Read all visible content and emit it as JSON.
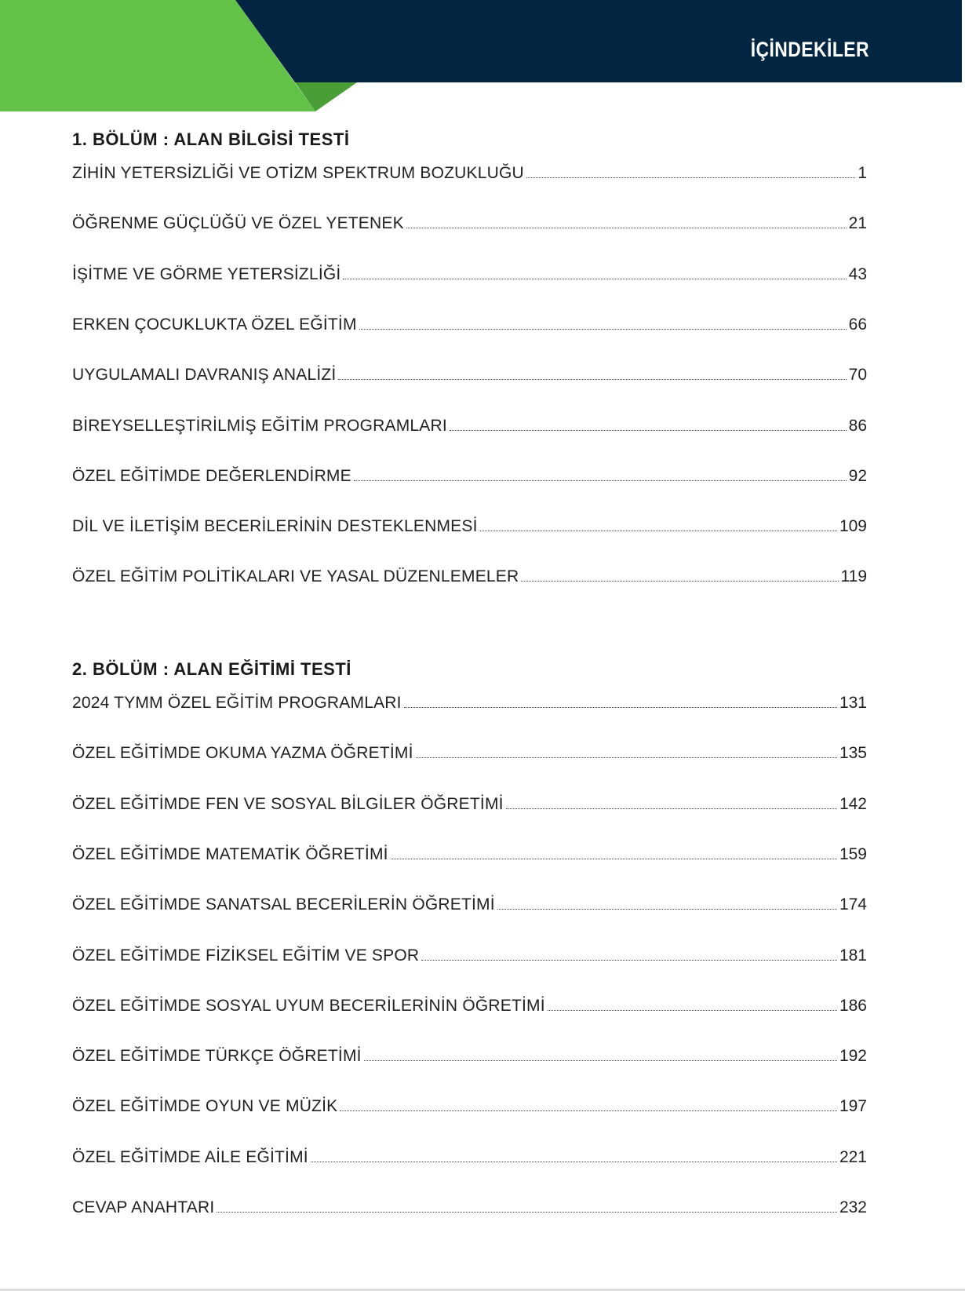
{
  "header": {
    "title": "İÇİNDEKİLER",
    "colors": {
      "green": "#62c247",
      "dark_green": "#4a9e36",
      "navy": "#022642"
    }
  },
  "sections": [
    {
      "heading": "1. BÖLÜM : ALAN BİLGİSİ TESTİ",
      "entries": [
        {
          "title": "ZİHİN YETERSİZLİĞİ VE OTİZM SPEKTRUM BOZUKLUĞU",
          "page": "1"
        },
        {
          "title": "ÖĞRENME GÜÇLÜĞÜ VE ÖZEL YETENEK",
          "page": "21"
        },
        {
          "title": "İŞİTME VE GÖRME YETERSİZLİĞİ",
          "page": "43"
        },
        {
          "title": "ERKEN ÇOCUKLUKTA ÖZEL EĞİTİM",
          "page": "66"
        },
        {
          "title": "UYGULAMALI DAVRANIŞ ANALİZİ",
          "page": "70"
        },
        {
          "title": "BİREYSELLEŞTİRİLMİŞ EĞİTİM PROGRAMLARI",
          "page": "86"
        },
        {
          "title": "ÖZEL EĞİTİMDE DEĞERLENDİRME",
          "page": "92"
        },
        {
          "title": "DİL VE İLETİŞİM BECERİLERİNİN DESTEKLENMESİ",
          "page": "109"
        },
        {
          "title": "ÖZEL EĞİTİM POLİTİKALARI VE YASAL DÜZENLEMELER",
          "page": "119"
        }
      ]
    },
    {
      "heading": "2. BÖLÜM : ALAN EĞİTİMİ TESTİ",
      "entries": [
        {
          "title": "2024 TYMM ÖZEL EĞİTİM PROGRAMLARI",
          "page": "131"
        },
        {
          "title": "ÖZEL EĞİTİMDE OKUMA YAZMA ÖĞRETİMİ",
          "page": "135"
        },
        {
          "title": "ÖZEL EĞİTİMDE FEN VE SOSYAL BİLGİLER ÖĞRETİMİ",
          "page": "142"
        },
        {
          "title": "ÖZEL EĞİTİMDE MATEMATİK ÖĞRETİMİ",
          "page": "159"
        },
        {
          "title": "ÖZEL EĞİTİMDE SANATSAL BECERİLERİN ÖĞRETİMİ",
          "page": "174"
        },
        {
          "title": "ÖZEL EĞİTİMDE FİZİKSEL EĞİTİM VE SPOR",
          "page": "181"
        },
        {
          "title": "ÖZEL EĞİTİMDE SOSYAL UYUM BECERİLERİNİN ÖĞRETİMİ",
          "page": "186"
        },
        {
          "title": "ÖZEL EĞİTİMDE TÜRKÇE ÖĞRETİMİ",
          "page": "192"
        },
        {
          "title": "ÖZEL EĞİTİMDE OYUN VE MÜZİK",
          "page": "197"
        },
        {
          "title": "ÖZEL EĞİTİMDE AİLE EĞİTİMİ",
          "page": "221"
        },
        {
          "title": "CEVAP ANAHTARI",
          "page": "232"
        }
      ]
    }
  ]
}
